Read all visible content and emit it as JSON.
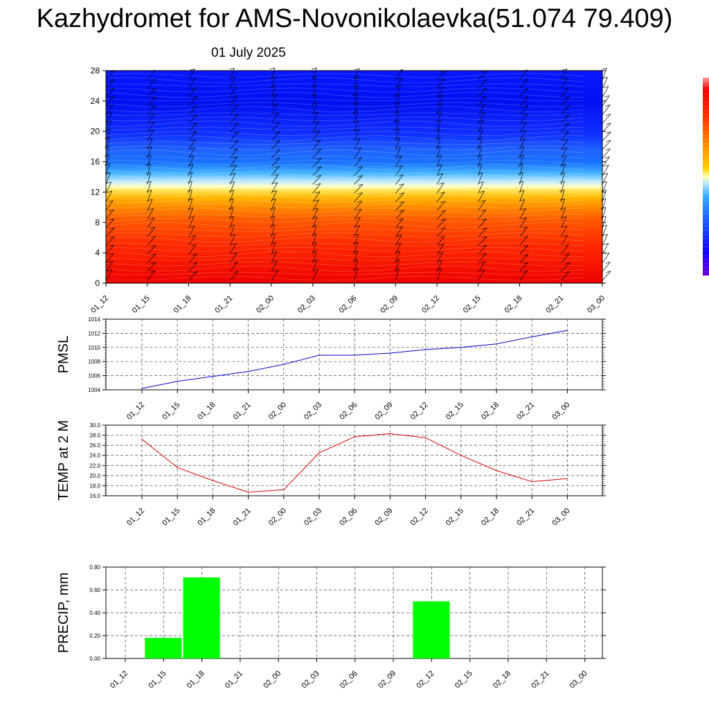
{
  "header": {
    "title": "Kazhydromet for AMS-Novonikolaevka(51.074 79.409)",
    "subtitle": "01 July 2025"
  },
  "colors": {
    "pmsl_line": "#0000cc",
    "temp_line": "#dd0000",
    "precip_bar": "#00ff00"
  },
  "time_labels": [
    "01_12",
    "01_15",
    "01_18",
    "01_21",
    "02_00",
    "02_03",
    "02_06",
    "02_09",
    "02_12",
    "02_15",
    "02_18",
    "02_21",
    "03_00"
  ],
  "chart_data": [
    {
      "id": "cross-section",
      "type": "heatmap",
      "title": "",
      "ylabel": "",
      "y_ticks": [
        "0",
        "4",
        "8",
        "12",
        "16",
        "20",
        "24",
        "28"
      ],
      "ylim": [
        0,
        28
      ],
      "x": [
        "01_12",
        "01_15",
        "01_18",
        "01_21",
        "02_00",
        "02_03",
        "02_06",
        "02_09",
        "02_12",
        "02_15",
        "02_18",
        "02_21",
        "03_00"
      ],
      "colormap": [
        "#6a00d8",
        "#1000ff",
        "#1a4cff",
        "#3c9bff",
        "#aee3ff",
        "#ffffc0",
        "#ffd000",
        "#ff8c00",
        "#ff3000",
        "#ee0000",
        "#ff8080"
      ],
      "overlay": "wind barbs"
    },
    {
      "id": "pmsl",
      "type": "line",
      "ylabel": "PMSL",
      "x": [
        "01_12",
        "01_15",
        "01_18",
        "01_21",
        "02_00",
        "02_03",
        "02_06",
        "02_09",
        "02_12",
        "02_15",
        "02_18",
        "02_21",
        "03_00"
      ],
      "values": [
        1004.2,
        1005.2,
        1005.9,
        1006.6,
        1007.6,
        1008.9,
        1008.9,
        1009.2,
        1009.7,
        1010.0,
        1010.5,
        1011.5,
        1012.4
      ],
      "ylim": [
        1004,
        1014
      ],
      "y_ticks": [
        "1004",
        "1006",
        "1008",
        "1010",
        "1012",
        "1014"
      ],
      "grid": true
    },
    {
      "id": "temp",
      "type": "line",
      "ylabel": "TEMP at 2 M",
      "x": [
        "01_12",
        "01_15",
        "01_18",
        "01_21",
        "02_00",
        "02_03",
        "02_06",
        "02_09",
        "02_12",
        "02_15",
        "02_18",
        "02_21",
        "03_00"
      ],
      "values": [
        27.2,
        21.6,
        19.0,
        16.7,
        17.2,
        24.5,
        27.7,
        28.3,
        27.5,
        24.0,
        21.0,
        18.8,
        19.4
      ],
      "ylim": [
        16,
        30
      ],
      "y_ticks": [
        "16.0",
        "18.0",
        "20.0",
        "22.0",
        "24.0",
        "26.0",
        "28.0",
        "30.0"
      ],
      "grid": true
    },
    {
      "id": "precip",
      "type": "bar",
      "ylabel": "PRECIP, mm",
      "categories": [
        "01_12",
        "01_15",
        "01_18",
        "01_21",
        "02_00",
        "02_03",
        "02_06",
        "02_09",
        "02_12",
        "02_15",
        "02_18",
        "02_21",
        "03_00"
      ],
      "values": [
        0,
        0.18,
        0.71,
        0,
        0,
        0,
        0,
        0,
        0.5,
        0,
        0,
        0,
        0
      ],
      "ylim": [
        0,
        0.8
      ],
      "y_ticks": [
        "0.00",
        "0.20",
        "0.40",
        "0.60",
        "0.80"
      ],
      "grid": true
    }
  ]
}
